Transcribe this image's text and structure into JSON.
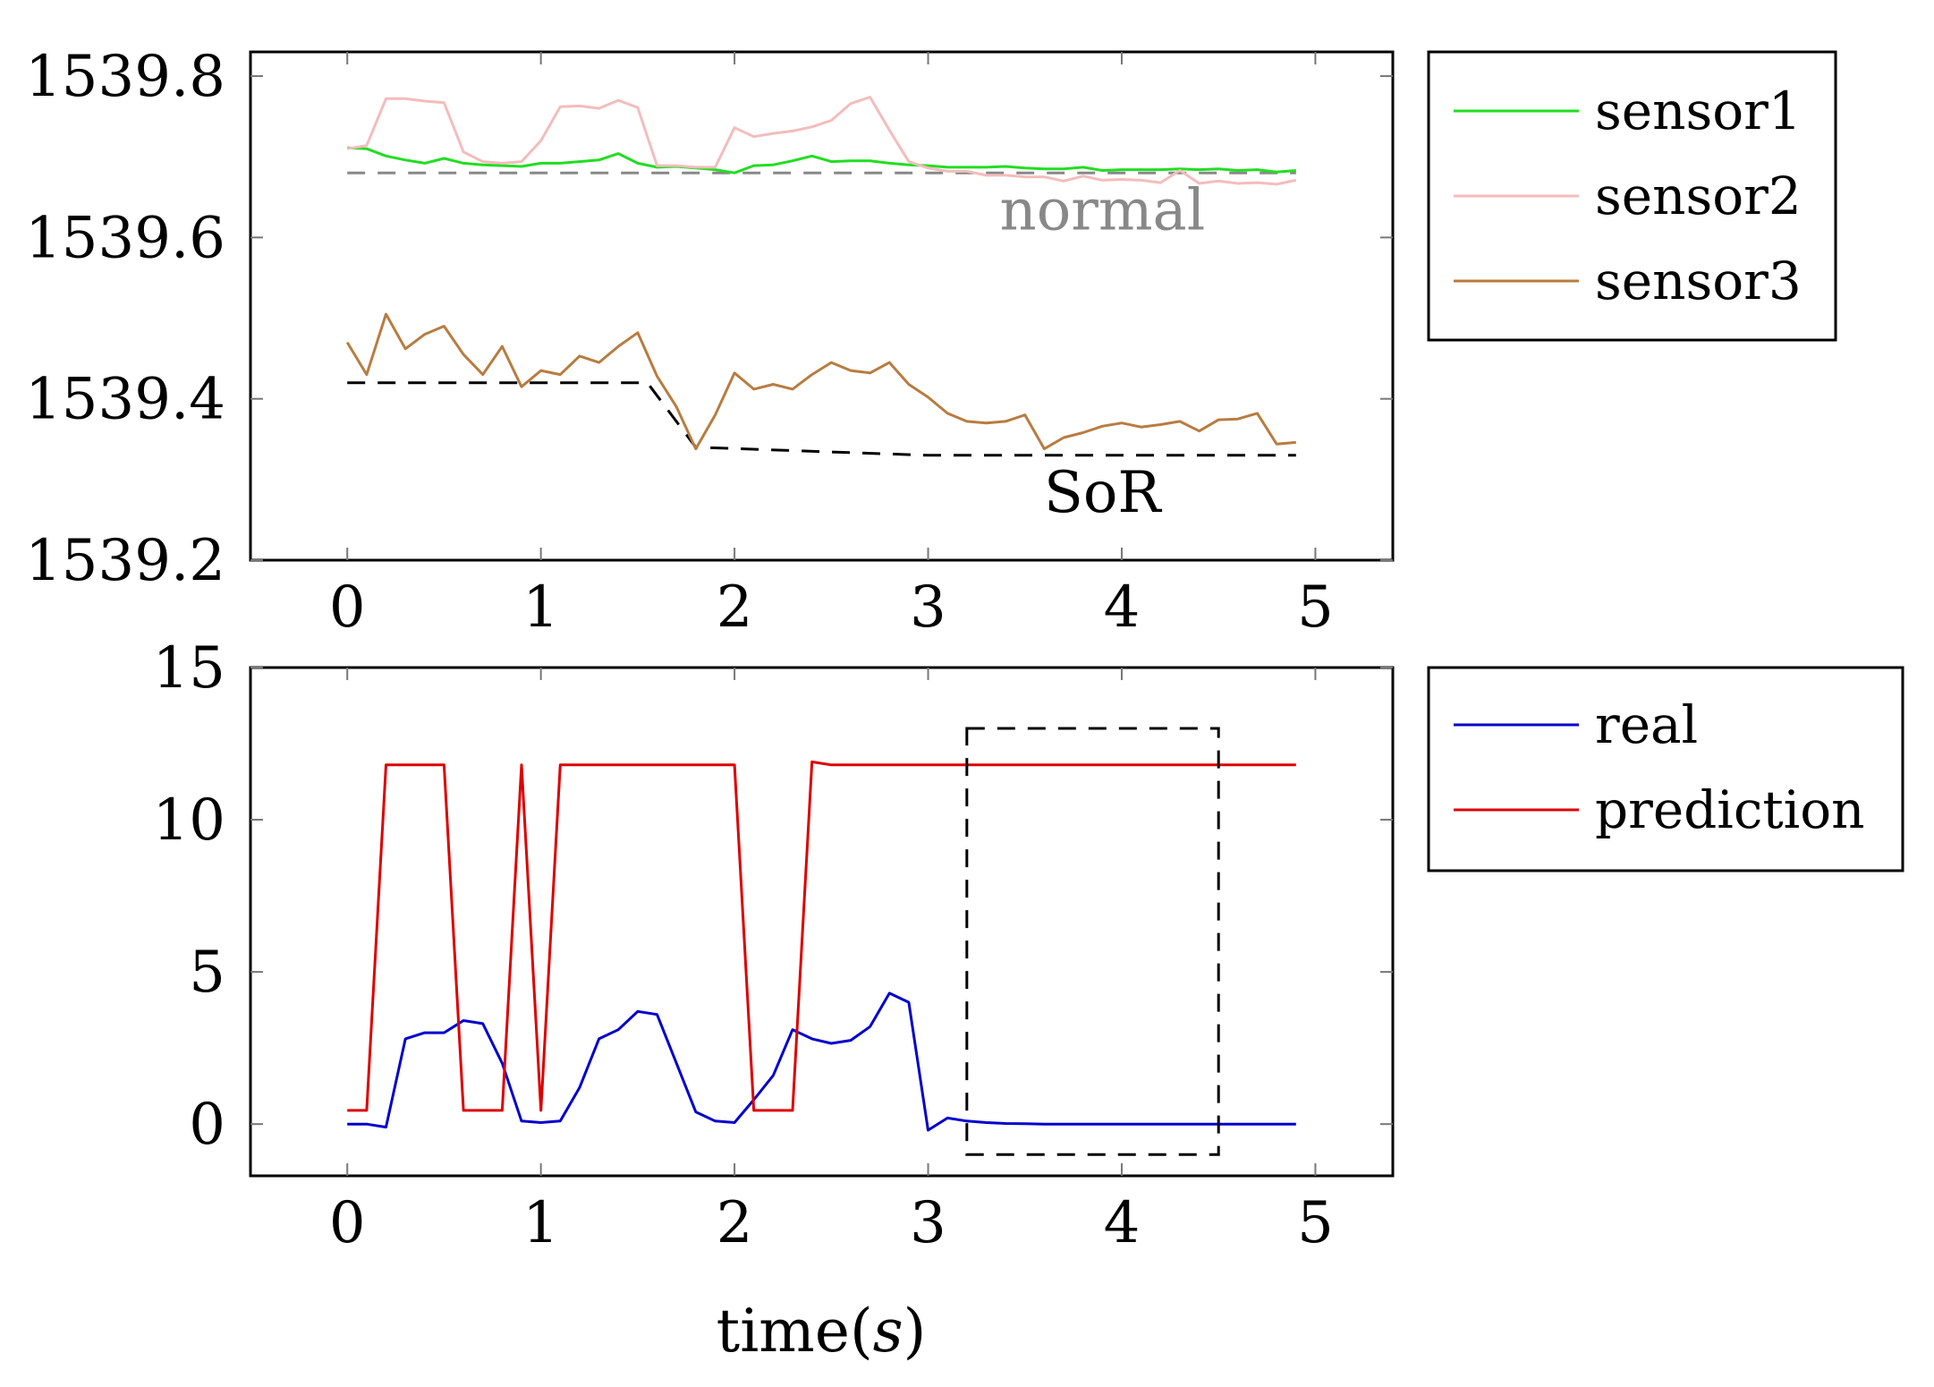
{
  "chart_data": [
    {
      "type": "line",
      "title": "",
      "xlabel": "",
      "ylabel": "",
      "xlim": [
        -0.5,
        5.4
      ],
      "ylim": [
        1539.2,
        1539.83
      ],
      "x_ticks": [
        0,
        1,
        2,
        3,
        4,
        5
      ],
      "x_tick_labels": [
        "0",
        "1",
        "2",
        "3",
        "4",
        "5"
      ],
      "y_ticks": [
        1539.2,
        1539.4,
        1539.6,
        1539.8
      ],
      "y_tick_labels": [
        "1539.2",
        "1539.4",
        "1539.6",
        "1539.8"
      ],
      "grid": false,
      "legend_position": "outside-right-top",
      "x": [
        0,
        0.1,
        0.2,
        0.3,
        0.4,
        0.5,
        0.6,
        0.7,
        0.8,
        0.9,
        1.0,
        1.1,
        1.2,
        1.3,
        1.4,
        1.5,
        1.6,
        1.7,
        1.8,
        1.9,
        2.0,
        2.1,
        2.2,
        2.3,
        2.4,
        2.5,
        2.6,
        2.7,
        2.8,
        2.9,
        3.0,
        3.1,
        3.2,
        3.3,
        3.4,
        3.5,
        3.6,
        3.7,
        3.8,
        3.9,
        4.0,
        4.1,
        4.2,
        4.3,
        4.4,
        4.5,
        4.6,
        4.7,
        4.8,
        4.9
      ],
      "series": [
        {
          "name": "sensor1",
          "color": "#22dd22",
          "values": [
            1539.711,
            1539.71,
            1539.701,
            1539.696,
            1539.692,
            1539.698,
            1539.692,
            1539.69,
            1539.689,
            1539.688,
            1539.692,
            1539.692,
            1539.694,
            1539.696,
            1539.704,
            1539.692,
            1539.687,
            1539.688,
            1539.686,
            1539.684,
            1539.68,
            1539.689,
            1539.69,
            1539.695,
            1539.701,
            1539.694,
            1539.695,
            1539.695,
            1539.692,
            1539.69,
            1539.689,
            1539.687,
            1539.687,
            1539.687,
            1539.688,
            1539.686,
            1539.685,
            1539.685,
            1539.687,
            1539.683,
            1539.684,
            1539.684,
            1539.684,
            1539.685,
            1539.684,
            1539.685,
            1539.683,
            1539.684,
            1539.681,
            1539.683
          ]
        },
        {
          "name": "sensor2",
          "color": "#f4bcbc",
          "values": [
            1539.71,
            1539.714,
            1539.772,
            1539.772,
            1539.769,
            1539.767,
            1539.706,
            1539.694,
            1539.692,
            1539.694,
            1539.72,
            1539.762,
            1539.763,
            1539.76,
            1539.77,
            1539.761,
            1539.689,
            1539.689,
            1539.687,
            1539.687,
            1539.736,
            1539.725,
            1539.729,
            1539.732,
            1539.737,
            1539.745,
            1539.766,
            1539.774,
            1539.733,
            1539.694,
            1539.686,
            1539.682,
            1539.682,
            1539.677,
            1539.677,
            1539.675,
            1539.675,
            1539.67,
            1539.676,
            1539.671,
            1539.672,
            1539.671,
            1539.668,
            1539.683,
            1539.667,
            1539.67,
            1539.667,
            1539.668,
            1539.666,
            1539.671
          ]
        },
        {
          "name": "sensor3",
          "color": "#b87c40",
          "values": [
            1539.47,
            1539.43,
            1539.505,
            1539.462,
            1539.48,
            1539.49,
            1539.455,
            1539.43,
            1539.465,
            1539.415,
            1539.435,
            1539.43,
            1539.453,
            1539.445,
            1539.465,
            1539.482,
            1539.428,
            1539.39,
            1539.338,
            1539.38,
            1539.432,
            1539.412,
            1539.418,
            1539.412,
            1539.43,
            1539.445,
            1539.435,
            1539.432,
            1539.445,
            1539.418,
            1539.402,
            1539.382,
            1539.372,
            1539.37,
            1539.372,
            1539.38,
            1539.338,
            1539.352,
            1539.358,
            1539.366,
            1539.37,
            1539.365,
            1539.368,
            1539.372,
            1539.36,
            1539.374,
            1539.375,
            1539.382,
            1539.344,
            1539.346
          ]
        },
        {
          "name": "",
          "role": "normal reference",
          "style": "dashed",
          "color": "#888888",
          "x": [
            0,
            4.9
          ],
          "values": [
            1539.68,
            1539.68
          ]
        },
        {
          "name": "",
          "role": "SoR reference",
          "style": "dashed",
          "color": "#000000",
          "x": [
            0,
            1.55,
            1.8,
            3.0,
            4.9
          ],
          "values": [
            1539.42,
            1539.42,
            1539.34,
            1539.33,
            1539.33
          ]
        }
      ],
      "annotations": [
        {
          "text": "normal",
          "x": 3.9,
          "y": 1539.61,
          "color": "#888888"
        },
        {
          "text": "SoR",
          "x": 3.9,
          "y": 1539.26,
          "color": "#000000"
        }
      ]
    },
    {
      "type": "line",
      "title": "",
      "xlabel": "time(s)",
      "ylabel": "",
      "xlim": [
        -0.5,
        5.4
      ],
      "ylim": [
        -1.7,
        15
      ],
      "x_ticks": [
        0,
        1,
        2,
        3,
        4,
        5
      ],
      "x_tick_labels": [
        "0",
        "1",
        "2",
        "3",
        "4",
        "5"
      ],
      "y_ticks": [
        0,
        5,
        10,
        15
      ],
      "y_tick_labels": [
        "0",
        "5",
        "10",
        "15"
      ],
      "grid": false,
      "legend_position": "outside-right-top",
      "x": [
        0,
        0.1,
        0.2,
        0.3,
        0.4,
        0.5,
        0.6,
        0.7,
        0.8,
        0.9,
        1.0,
        1.1,
        1.2,
        1.3,
        1.4,
        1.5,
        1.6,
        1.7,
        1.8,
        1.9,
        2.0,
        2.1,
        2.2,
        2.3,
        2.4,
        2.5,
        2.6,
        2.7,
        2.8,
        2.9,
        3.0,
        3.1,
        3.2,
        3.3,
        3.4,
        3.5,
        3.6,
        3.7,
        3.8,
        3.9,
        4.0,
        4.1,
        4.2,
        4.3,
        4.4,
        4.5,
        4.6,
        4.7,
        4.8,
        4.9
      ],
      "series": [
        {
          "name": "real",
          "color": "#0000cc",
          "values": [
            0,
            0,
            -0.1,
            2.8,
            3.0,
            3.0,
            3.4,
            3.3,
            2.0,
            0.1,
            0.05,
            0.1,
            1.2,
            2.8,
            3.1,
            3.7,
            3.6,
            2.0,
            0.4,
            0.1,
            0.05,
            0.8,
            1.6,
            3.1,
            2.8,
            2.65,
            2.75,
            3.2,
            4.3,
            4.0,
            -0.2,
            0.2,
            0.1,
            0.05,
            0.02,
            0.01,
            0,
            0,
            0,
            0,
            0,
            0,
            0,
            0,
            0,
            0,
            0,
            0,
            0,
            0
          ]
        },
        {
          "name": "prediction",
          "color": "#dd0000",
          "values": [
            0.45,
            0.45,
            11.8,
            11.8,
            11.8,
            11.8,
            0.45,
            0.45,
            0.45,
            11.8,
            0.45,
            11.8,
            11.8,
            11.8,
            11.8,
            11.8,
            11.8,
            11.8,
            11.8,
            11.8,
            11.8,
            0.45,
            0.45,
            0.45,
            11.9,
            11.8,
            11.8,
            11.8,
            11.8,
            11.8,
            11.8,
            11.8,
            11.8,
            11.8,
            11.8,
            11.8,
            11.8,
            11.8,
            11.8,
            11.8,
            11.8,
            11.8,
            11.8,
            11.8,
            11.8,
            11.8,
            11.8,
            11.8,
            11.8,
            11.8
          ]
        }
      ],
      "highlight_box": {
        "x_range": [
          3.2,
          4.5
        ],
        "y_range": [
          -1.0,
          13.0
        ],
        "style": "dashed",
        "color": "#000000"
      }
    }
  ]
}
